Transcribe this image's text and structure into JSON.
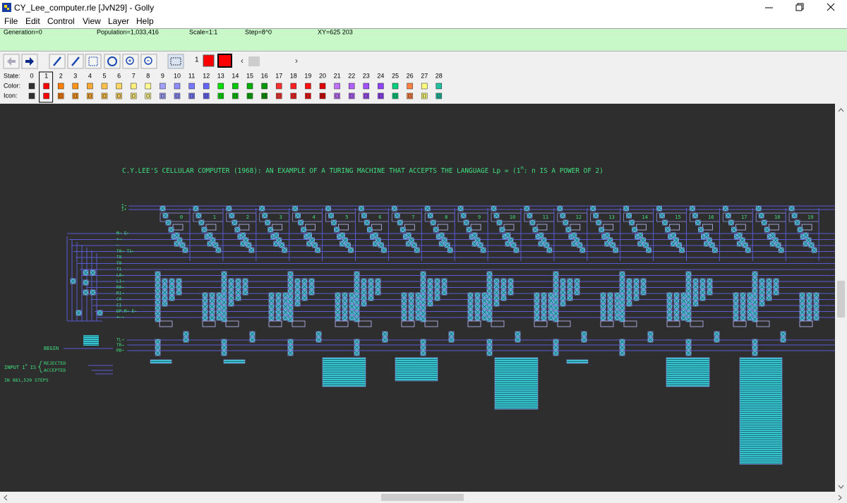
{
  "window": {
    "title": "CY_Lee_computer.rle [JvN29] - Golly",
    "menu": [
      "File",
      "Edit",
      "Control",
      "View",
      "Layer",
      "Help"
    ]
  },
  "status": {
    "generation": "Generation=0",
    "population": "Population=1,033,416",
    "scale": "Scale=1:1",
    "step": "Step=8^0",
    "xy": "XY=625 203"
  },
  "toolbar": {
    "layer": "1"
  },
  "states": {
    "row_labels": [
      "State:",
      "Color:",
      "Icon:"
    ],
    "numbers": [
      "0",
      "1",
      "2",
      "3",
      "4",
      "5",
      "6",
      "7",
      "8",
      "9",
      "10",
      "11",
      "12",
      "13",
      "14",
      "15",
      "16",
      "17",
      "18",
      "19",
      "20",
      "21",
      "22",
      "23",
      "24",
      "25",
      "26",
      "27",
      "28"
    ],
    "colors": [
      "#303030",
      "#ff0000",
      "#ff7d00",
      "#ff9619",
      "#ffaa32",
      "#ffc34b",
      "#ffd764",
      "#fff07d",
      "#fffa96",
      "#a0a0ff",
      "#8c8cff",
      "#7878ff",
      "#6464ff",
      "#00e000",
      "#00c800",
      "#00b000",
      "#009800",
      "#ff3030",
      "#ff2020",
      "#ff1010",
      "#e00000",
      "#c070ff",
      "#b060ff",
      "#a050ff",
      "#9040ff",
      "#00d080",
      "#ff8040",
      "#ffff80",
      "#20c0a0"
    ],
    "selected": "1"
  },
  "canvas": {
    "heading": {
      "before": "C.Y.LEE'S CELLULAR COMPUTER (1968):  AN EXAMPLE OF A TURING MACHINE THAT ACCEPTS THE LANGUAGE Lp = (1",
      "sup": "n",
      "after": ": n IS A POWER OF 2)"
    },
    "cell_numbers": [
      "0",
      "1",
      "2",
      "3",
      "4",
      "5",
      "6",
      "7",
      "8",
      "9",
      "10",
      "11",
      "12",
      "13",
      "14",
      "15",
      "16",
      "17",
      "18",
      "19"
    ],
    "top_labels": [
      "I→",
      "I+"
    ],
    "left_labels": [
      "M→ E←",
      "+→",
      "←",
      "T0→ T1←",
      "T0",
      "T0",
      "T1",
      "L0→",
      "L1→",
      "R0→",
      "R1→",
      "C0",
      "C1",
      "DP:M→ E←",
      "+←→"
    ],
    "bottom_labels": [
      "TL→",
      "TR→",
      "RB→"
    ],
    "begin": "BEGIN",
    "input": {
      "before": "INPUT 1",
      "sup": "n",
      "after": " IS"
    },
    "rejected": "REJECTED",
    "accepted": "ACCEPTED",
    "steps": "IN 881,539 STEPS"
  }
}
